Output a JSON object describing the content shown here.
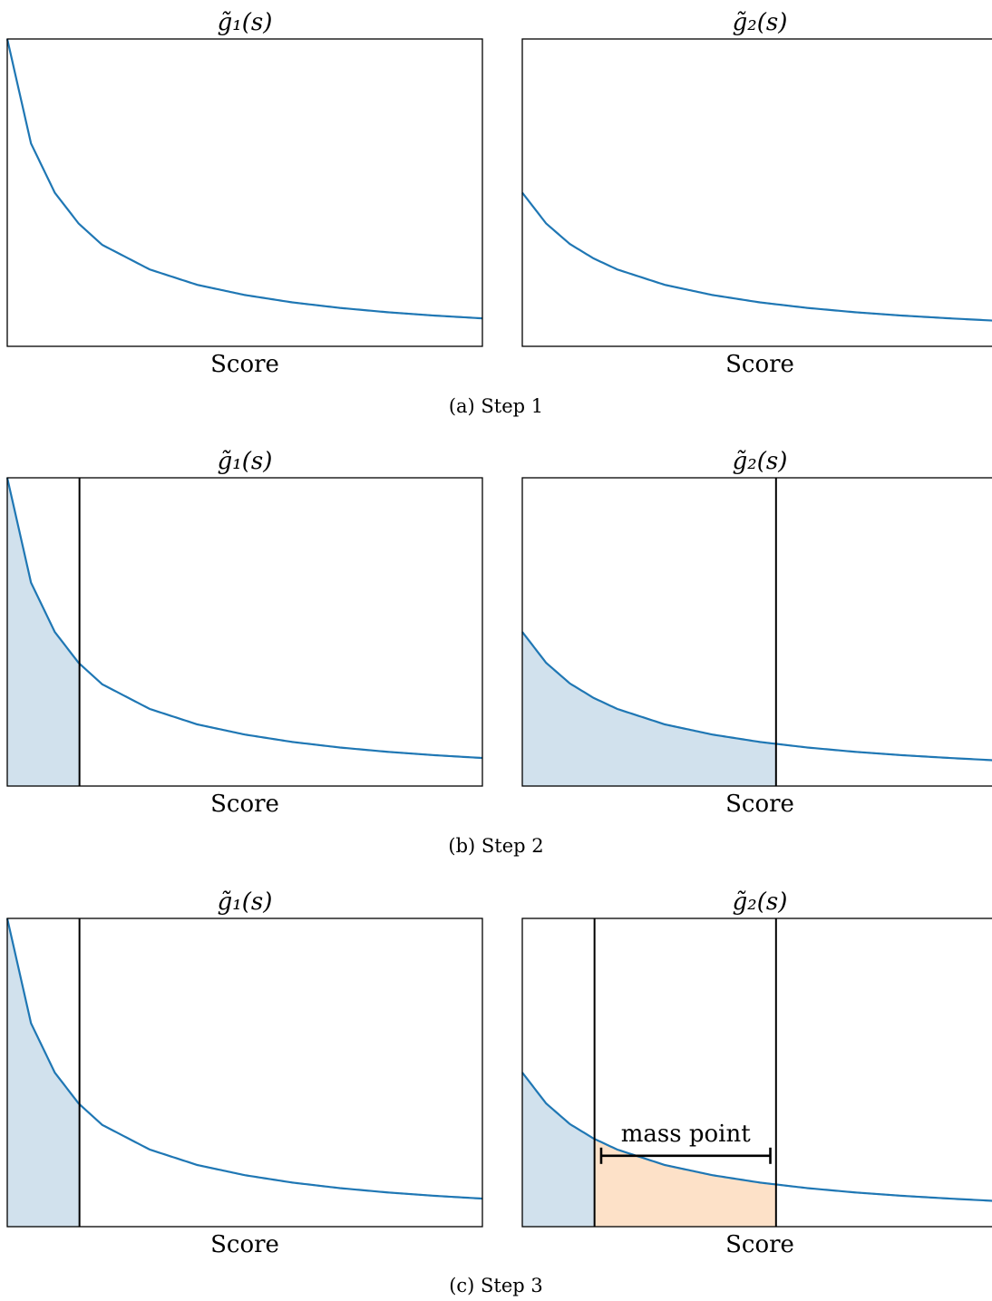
{
  "figure": {
    "captions": [
      "(a) Step 1",
      "(b) Step 2",
      "(c) Step 3"
    ]
  },
  "chart_data": [
    {
      "type": "area",
      "title": "g̃₁(s)",
      "xlabel": "Score",
      "ylabel": "",
      "xticks": "none",
      "yticks": "none",
      "grid": false,
      "xlim": [
        0,
        1
      ],
      "ylim": [
        0,
        1
      ],
      "x": [
        0,
        0.05,
        0.1,
        0.15,
        0.2,
        0.3,
        0.4,
        0.5,
        0.6,
        0.7,
        0.8,
        0.9,
        1.0
      ],
      "series": [
        {
          "values": [
            1.0,
            0.66,
            0.5,
            0.4,
            0.33,
            0.25,
            0.2,
            0.167,
            0.143,
            0.125,
            0.111,
            0.1,
            0.091
          ],
          "color": "#1f77b4"
        }
      ],
      "shaded": [],
      "vlines": [],
      "annotations": []
    },
    {
      "type": "area",
      "title": "g̃₂(s)",
      "xlabel": "Score",
      "ylabel": "",
      "xticks": "none",
      "yticks": "none",
      "grid": false,
      "xlim": [
        0,
        1
      ],
      "ylim": [
        0,
        1
      ],
      "x": [
        0,
        0.05,
        0.1,
        0.15,
        0.2,
        0.3,
        0.4,
        0.5,
        0.6,
        0.7,
        0.8,
        0.9,
        1.0
      ],
      "series": [
        {
          "values": [
            0.5,
            0.4,
            0.333,
            0.286,
            0.25,
            0.2,
            0.167,
            0.143,
            0.125,
            0.111,
            0.1,
            0.091,
            0.083
          ],
          "color": "#1f77b4"
        }
      ],
      "shaded": [],
      "vlines": [],
      "annotations": []
    },
    {
      "type": "area",
      "title": "g̃₁(s)",
      "xlabel": "Score",
      "ylabel": "",
      "xticks": "none",
      "yticks": "none",
      "grid": false,
      "xlim": [
        0,
        1
      ],
      "ylim": [
        0,
        1
      ],
      "x": [
        0,
        0.05,
        0.1,
        0.15,
        0.2,
        0.3,
        0.4,
        0.5,
        0.6,
        0.7,
        0.8,
        0.9,
        1.0
      ],
      "series": [
        {
          "values": [
            1.0,
            0.66,
            0.5,
            0.4,
            0.33,
            0.25,
            0.2,
            0.167,
            0.143,
            0.125,
            0.111,
            0.1,
            0.091
          ],
          "color": "#1f77b4"
        }
      ],
      "shaded": [
        {
          "x0": 0,
          "x1": 0.152,
          "color": "#d1e1ed"
        }
      ],
      "vlines": [
        0.152
      ],
      "annotations": []
    },
    {
      "type": "area",
      "title": "g̃₂(s)",
      "xlabel": "Score",
      "ylabel": "",
      "xticks": "none",
      "yticks": "none",
      "grid": false,
      "xlim": [
        0,
        1
      ],
      "ylim": [
        0,
        1
      ],
      "x": [
        0,
        0.05,
        0.1,
        0.15,
        0.2,
        0.3,
        0.4,
        0.5,
        0.6,
        0.7,
        0.8,
        0.9,
        1.0
      ],
      "series": [
        {
          "values": [
            0.5,
            0.4,
            0.333,
            0.286,
            0.25,
            0.2,
            0.167,
            0.143,
            0.125,
            0.111,
            0.1,
            0.091,
            0.083
          ],
          "color": "#1f77b4"
        }
      ],
      "shaded": [
        {
          "x0": 0,
          "x1": 0.534,
          "color": "#d1e1ed"
        }
      ],
      "vlines": [
        0.534
      ],
      "annotations": []
    },
    {
      "type": "area",
      "title": "g̃₁(s)",
      "xlabel": "Score",
      "ylabel": "",
      "xticks": "none",
      "yticks": "none",
      "grid": false,
      "xlim": [
        0,
        1
      ],
      "ylim": [
        0,
        1
      ],
      "x": [
        0,
        0.05,
        0.1,
        0.15,
        0.2,
        0.3,
        0.4,
        0.5,
        0.6,
        0.7,
        0.8,
        0.9,
        1.0
      ],
      "series": [
        {
          "values": [
            1.0,
            0.66,
            0.5,
            0.4,
            0.33,
            0.25,
            0.2,
            0.167,
            0.143,
            0.125,
            0.111,
            0.1,
            0.091
          ],
          "color": "#1f77b4"
        }
      ],
      "shaded": [
        {
          "x0": 0,
          "x1": 0.152,
          "color": "#d1e1ed"
        }
      ],
      "vlines": [
        0.152
      ],
      "annotations": []
    },
    {
      "type": "area",
      "title": "g̃₂(s)",
      "xlabel": "Score",
      "ylabel": "",
      "xticks": "none",
      "yticks": "none",
      "grid": false,
      "xlim": [
        0,
        1
      ],
      "ylim": [
        0,
        1
      ],
      "x": [
        0,
        0.05,
        0.1,
        0.15,
        0.2,
        0.3,
        0.4,
        0.5,
        0.6,
        0.7,
        0.8,
        0.9,
        1.0
      ],
      "series": [
        {
          "values": [
            0.5,
            0.4,
            0.333,
            0.286,
            0.25,
            0.2,
            0.167,
            0.143,
            0.125,
            0.111,
            0.1,
            0.091,
            0.083
          ],
          "color": "#1f77b4"
        }
      ],
      "shaded": [
        {
          "x0": 0,
          "x1": 0.152,
          "color": "#d1e1ed"
        },
        {
          "x0": 0.152,
          "x1": 0.534,
          "color": "#fde1c8"
        }
      ],
      "vlines": [
        0.152,
        0.534
      ],
      "annotations": [
        {
          "text": "mass point",
          "x0": 0.166,
          "x1": 0.522,
          "y": 0.23
        }
      ]
    }
  ]
}
